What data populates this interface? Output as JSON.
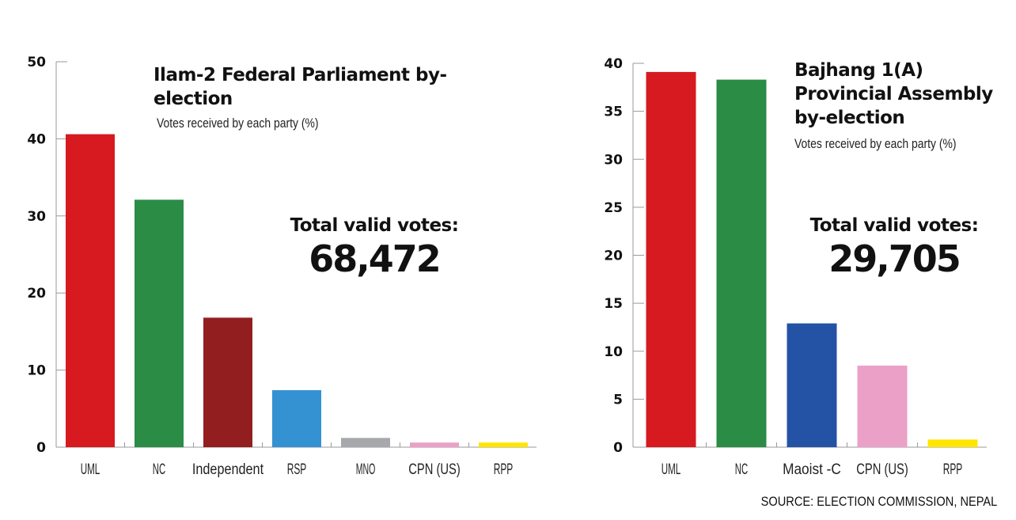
{
  "chart_data": [
    {
      "type": "bar",
      "title": "Ilam-2 Federal Parliament by-election",
      "subtitle": "Votes received by each party (%)",
      "categories": [
        "UML",
        "NC",
        "Independent",
        "RSP",
        "MNO",
        "CPN (US)",
        "RPP"
      ],
      "values": [
        40.6,
        32.1,
        16.8,
        7.4,
        1.2,
        0.6,
        0.6
      ],
      "colors": [
        "#d71920",
        "#2a8c45",
        "#931e20",
        "#3592d2",
        "#a7a8ab",
        "#eba0c8",
        "#ffe500"
      ],
      "ylim": [
        0,
        50
      ],
      "yticks": [
        0,
        10,
        20,
        30,
        40,
        50
      ],
      "xlabel": "",
      "ylabel": "",
      "total_label": "Total valid votes:",
      "total_value": "68,472"
    },
    {
      "type": "bar",
      "title": "Bajhang 1(A) Provincial Assembly by-election",
      "subtitle": "Votes received by each party (%)",
      "categories": [
        "UML",
        "NC",
        "Maoist -C",
        "CPN (US)",
        "RPP"
      ],
      "values": [
        39.1,
        38.3,
        12.9,
        8.5,
        0.8
      ],
      "colors": [
        "#d71920",
        "#2a8c45",
        "#2453a5",
        "#eba0c8",
        "#ffe500"
      ],
      "ylim": [
        0,
        40
      ],
      "yticks": [
        0,
        5,
        10,
        15,
        20,
        25,
        30,
        35,
        40
      ],
      "xlabel": "",
      "ylabel": "",
      "total_label": "Total valid votes:",
      "total_value": "29,705"
    }
  ],
  "source": "SOURCE: ELECTION COMMISSION, NEPAL"
}
